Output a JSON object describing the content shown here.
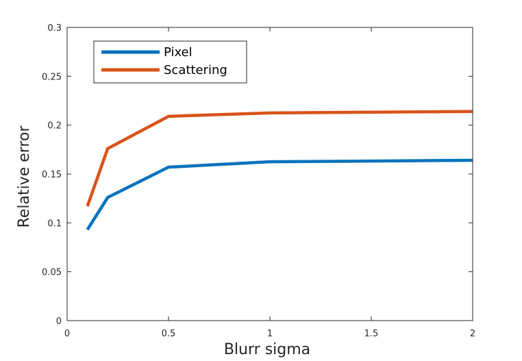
{
  "chart_data": {
    "type": "line",
    "title": "",
    "xlabel": "Blurr sigma",
    "ylabel": "Relative error",
    "xlim": [
      0,
      2
    ],
    "ylim": [
      0,
      0.3
    ],
    "xticks": [
      0,
      0.5,
      1,
      1.5,
      2
    ],
    "xtick_labels": [
      "0",
      "0.5",
      "1",
      "1.5",
      "2"
    ],
    "yticks": [
      0,
      0.05,
      0.1,
      0.15,
      0.2,
      0.25,
      0.3
    ],
    "ytick_labels": [
      "0",
      "0.05",
      "0.1",
      "0.15",
      "0.2",
      "0.25",
      "0.3"
    ],
    "grid": false,
    "legend_position": "top-left",
    "x": [
      0.1,
      0.2,
      0.5,
      1,
      2
    ],
    "series": [
      {
        "name": "Pixel",
        "color": "#0072bd",
        "values": [
          0.093,
          0.126,
          0.157,
          0.1625,
          0.164
        ]
      },
      {
        "name": "Scattering",
        "color": "#d95319",
        "values": [
          0.117,
          0.176,
          0.209,
          0.2125,
          0.214
        ]
      }
    ]
  }
}
